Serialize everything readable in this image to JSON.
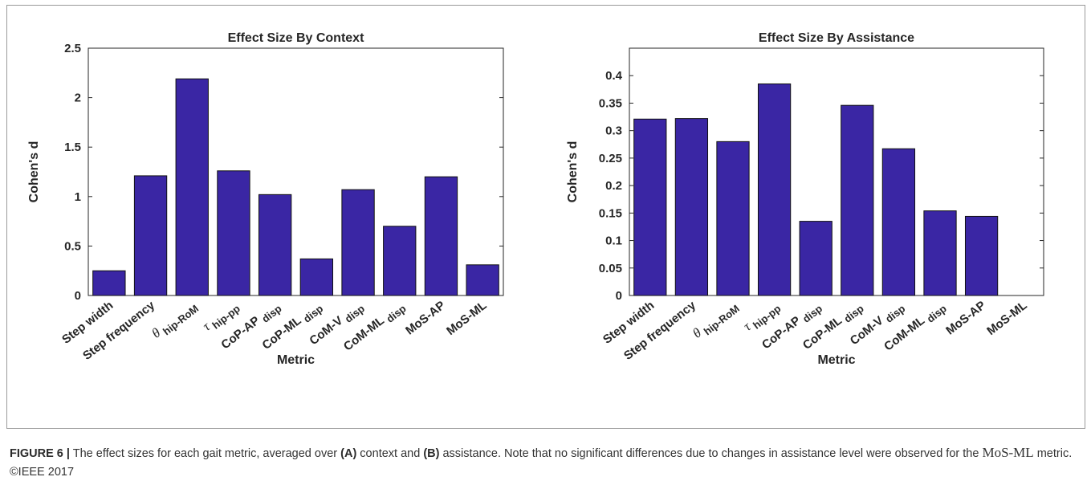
{
  "chart_data": [
    {
      "type": "bar",
      "title": "Effect Size By Context",
      "x_label": "Metric",
      "y_label": "Cohen's d",
      "categories": [
        "Step width",
        "Step frequency",
        "θ",
        "τ",
        "CoP-AP",
        "CoP-ML",
        "CoM-V",
        "CoM-ML",
        "MoS-AP",
        "MoS-ML"
      ],
      "category_subscripts": [
        null,
        null,
        "hip-RoM",
        "hip-pp",
        "disp",
        "disp",
        "disp",
        "disp",
        null,
        null
      ],
      "values": [
        0.25,
        1.21,
        2.19,
        1.26,
        1.02,
        0.37,
        1.07,
        0.7,
        1.2,
        0.31
      ],
      "color": "#3a26a4",
      "ylim": [
        0,
        2.5
      ],
      "yticks": [
        0,
        0.5,
        1,
        1.5,
        2,
        2.5
      ],
      "grid": false
    },
    {
      "type": "bar",
      "title": "Effect Size By Assistance",
      "x_label": "Metric",
      "y_label": "Cohen's d",
      "categories": [
        "Step width",
        "Step frequency",
        "θ",
        "τ",
        "CoP-AP",
        "CoP-ML",
        "CoM-V",
        "CoM-ML",
        "MoS-AP",
        "MoS-ML"
      ],
      "category_subscripts": [
        null,
        null,
        "hip-RoM",
        "hip-pp",
        "disp",
        "disp",
        "disp",
        "disp",
        null,
        null
      ],
      "values": [
        0.321,
        0.322,
        0.28,
        0.385,
        0.135,
        0.346,
        0.267,
        0.154,
        0.144,
        null
      ],
      "color": "#3a26a4",
      "ylim": [
        0,
        0.45
      ],
      "yticks": [
        0,
        0.05,
        0.1,
        0.15,
        0.2,
        0.25,
        0.3,
        0.35,
        0.4
      ],
      "grid": false
    }
  ],
  "caption": {
    "parts": [
      "FIGURE 6 |",
      " The effect sizes for each gait metric, averaged over ",
      "(A)",
      " context and ",
      "(B)",
      " assistance. Note that no significant differences due to changes in assistance level were observed for the ",
      "MoS-ML",
      " metric. ©IEEE 2017"
    ]
  }
}
